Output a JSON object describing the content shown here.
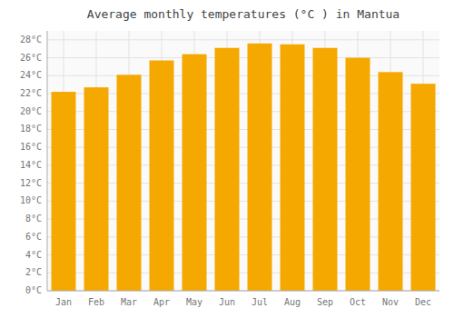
{
  "chart_data": {
    "type": "bar",
    "title": "Average monthly temperatures (°C ) in Mantua",
    "categories": [
      "Jan",
      "Feb",
      "Mar",
      "Apr",
      "May",
      "Jun",
      "Jul",
      "Aug",
      "Sep",
      "Oct",
      "Nov",
      "Dec"
    ],
    "values": [
      22.2,
      22.7,
      24.1,
      25.7,
      26.4,
      27.1,
      27.6,
      27.5,
      27.1,
      26.0,
      24.4,
      23.1
    ],
    "color": "#F5A800",
    "ylim": [
      0,
      29
    ],
    "yticks": [
      {
        "value": 0,
        "label": "0°C"
      },
      {
        "value": 2,
        "label": "2°C"
      },
      {
        "value": 4,
        "label": "4°C"
      },
      {
        "value": 6,
        "label": "6°C"
      },
      {
        "value": 8,
        "label": "8°C"
      },
      {
        "value": 10,
        "label": "10°C"
      },
      {
        "value": 12,
        "label": "12°C"
      },
      {
        "value": 14,
        "label": "14°C"
      },
      {
        "value": 16,
        "label": "16°C"
      },
      {
        "value": 18,
        "label": "18°C"
      },
      {
        "value": 20,
        "label": "20°C"
      },
      {
        "value": 22,
        "label": "22°C"
      },
      {
        "value": 24,
        "label": "24°C"
      },
      {
        "value": 26,
        "label": "26°C"
      },
      {
        "value": 28,
        "label": "28°C"
      }
    ],
    "grid": true
  }
}
